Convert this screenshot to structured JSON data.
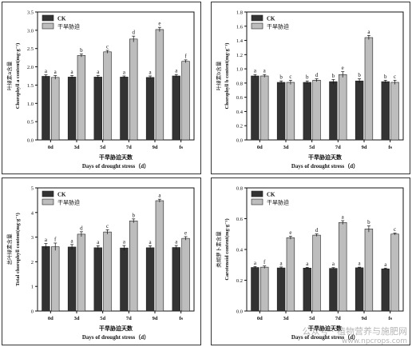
{
  "charts_common": {
    "x_label_cn": "干旱胁迫天数",
    "x_label_en": "Days of drought stress（d）",
    "legend": [
      "CK",
      "干旱胁迫"
    ],
    "colors": {
      "ck": "#333333",
      "drought": "#bdbdbd",
      "axis": "#111111"
    }
  },
  "chart_data": [
    {
      "type": "bar",
      "categories": [
        "0d",
        "3d",
        "5d",
        "7d",
        "9d",
        "fs"
      ],
      "ylabel_cn": "叶绿素a含量",
      "ylabel_en": "Chorophyll a content(mg·g⁻¹)",
      "ylim": [
        0,
        3.5
      ],
      "yticks": [
        "0.0",
        "0.5",
        "1.0",
        "1.5",
        "2.0",
        "2.5",
        "3.0",
        "3.5"
      ],
      "legend_position": "top-left",
      "series": [
        {
          "name": "CK",
          "values": [
            1.74,
            1.72,
            1.72,
            1.72,
            1.71,
            1.75
          ],
          "errors": [
            0.04,
            0.04,
            0.04,
            0.03,
            0.04,
            0.04
          ],
          "letters": [
            "a",
            "a",
            "a",
            "a",
            "a",
            "a"
          ]
        },
        {
          "name": "干旱胁迫",
          "values": [
            1.71,
            2.31,
            2.41,
            2.76,
            3.02,
            2.15
          ],
          "errors": [
            0.05,
            0.04,
            0.04,
            0.08,
            0.06,
            0.04
          ],
          "letters": [
            "a",
            "b",
            "c",
            "d",
            "e",
            "f"
          ]
        }
      ]
    },
    {
      "type": "bar",
      "categories": [
        "0d",
        "3d",
        "5d",
        "7d",
        "9d",
        "fs"
      ],
      "ylabel_cn": "叶绿素b含量",
      "ylabel_en": "Chorophyll b content(mg·g⁻¹)",
      "ylim": [
        0,
        1.8
      ],
      "yticks": [
        "0.0",
        "0.2",
        "0.4",
        "0.6",
        "0.8",
        "1.0",
        "1.2",
        "1.4",
        "1.6",
        "1.8"
      ],
      "legend_position": "top-left",
      "series": [
        {
          "name": "CK",
          "values": [
            0.9,
            0.81,
            0.81,
            0.82,
            0.83,
            0.82
          ],
          "errors": [
            0.02,
            0.02,
            0.02,
            0.03,
            0.03,
            0.02
          ],
          "letters": [
            "a",
            "b",
            "b",
            "b",
            "b",
            "b"
          ]
        },
        {
          "name": "干旱胁迫",
          "values": [
            0.9,
            0.81,
            0.84,
            0.92,
            1.44,
            0.81
          ],
          "errors": [
            0.02,
            0.03,
            0.02,
            0.04,
            0.03,
            0.03
          ],
          "letters": [
            "a",
            "c",
            "d",
            "e",
            "a",
            "c"
          ]
        }
      ]
    },
    {
      "type": "bar",
      "categories": [
        "0d",
        "3d",
        "5d",
        "7d",
        "9d",
        "fs"
      ],
      "ylabel_cn": "总叶绿素含量",
      "ylabel_en": "Total chorophyll content(mg·g⁻¹)",
      "ylim": [
        0,
        5
      ],
      "yticks": [
        "0",
        "1",
        "2",
        "3",
        "4",
        "5"
      ],
      "legend_position": "top-left",
      "series": [
        {
          "name": "CK",
          "values": [
            2.62,
            2.6,
            2.57,
            2.56,
            2.57,
            2.58
          ],
          "errors": [
            0.12,
            0.1,
            0.08,
            0.1,
            0.08,
            0.08
          ],
          "letters": [
            "a",
            "a",
            "a",
            "a",
            "a",
            "a"
          ]
        },
        {
          "name": "干旱胁迫",
          "values": [
            2.61,
            3.12,
            3.21,
            3.66,
            4.48,
            2.95
          ],
          "errors": [
            0.15,
            0.1,
            0.09,
            0.08,
            0.06,
            0.07
          ],
          "letters": [
            "f",
            "d",
            "c",
            "b",
            "a",
            "e"
          ]
        }
      ]
    },
    {
      "type": "bar",
      "categories": [
        "0d",
        "3d",
        "5d",
        "7d",
        "9d",
        "fs"
      ],
      "ylabel_cn": "类胡萝卜素含量",
      "ylabel_en": "Carotenoid content(mg·g⁻¹)",
      "ylim": [
        0,
        0.8
      ],
      "yticks": [
        "0.0",
        "0.2",
        "0.4",
        "0.6",
        "0.8"
      ],
      "legend_position": "top-left",
      "series": [
        {
          "name": "CK",
          "values": [
            0.283,
            0.28,
            0.279,
            0.277,
            0.281,
            0.274
          ],
          "errors": [
            0.006,
            0.006,
            0.005,
            0.005,
            0.004,
            0.005
          ],
          "letters": [
            "a",
            "a",
            "a",
            "a",
            "a",
            "a"
          ]
        },
        {
          "name": "干旱胁迫",
          "values": [
            0.285,
            0.476,
            0.493,
            0.575,
            0.533,
            0.5
          ],
          "errors": [
            0.008,
            0.01,
            0.008,
            0.012,
            0.02,
            0.006
          ],
          "letters": [
            "f",
            "e",
            "d",
            "a",
            "b",
            "c"
          ]
        }
      ]
    }
  ],
  "watermark": {
    "text": "公众号 · 植物营养与施肥网",
    "url": "www.npcrops.com"
  }
}
